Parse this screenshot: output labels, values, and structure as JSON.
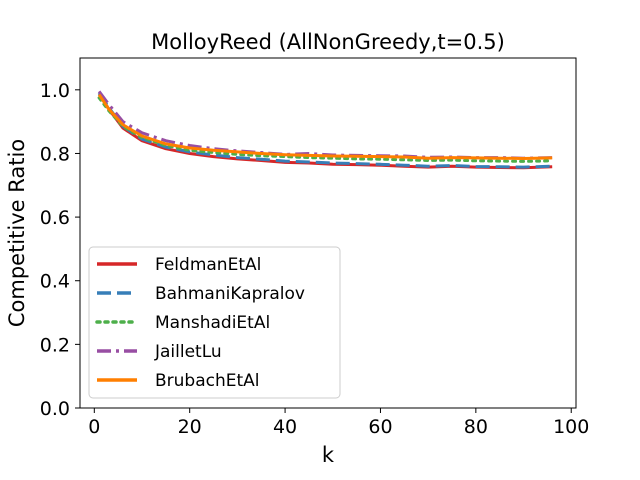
{
  "chart_data": {
    "type": "line",
    "title": "MolloyReed (AllNonGreedy,t=0.5)",
    "xlabel": "k",
    "ylabel": "Competitive Ratio",
    "xlim": [
      -3,
      101
    ],
    "ylim": [
      0.0,
      1.1
    ],
    "xticks": [
      0,
      20,
      40,
      60,
      80,
      100
    ],
    "xtick_labels": [
      "0",
      "20",
      "40",
      "60",
      "80",
      "100"
    ],
    "yticks": [
      0.0,
      0.2,
      0.4,
      0.6,
      0.8,
      1.0
    ],
    "ytick_labels": [
      "0.0",
      "0.2",
      "0.4",
      "0.6",
      "0.8",
      "1.0"
    ],
    "grid": false,
    "legend_position": "lower-left",
    "series": [
      {
        "name": "FeldmanEtAl",
        "color": "#d62728",
        "style": "solid",
        "x": [
          1,
          3,
          6,
          10,
          15,
          20,
          25,
          30,
          35,
          40,
          45,
          50,
          55,
          60,
          65,
          70,
          75,
          80,
          85,
          90,
          96
        ],
        "y": [
          0.99,
          0.94,
          0.88,
          0.84,
          0.815,
          0.8,
          0.79,
          0.783,
          0.778,
          0.772,
          0.77,
          0.766,
          0.765,
          0.763,
          0.76,
          0.757,
          0.76,
          0.757,
          0.756,
          0.755,
          0.758
        ]
      },
      {
        "name": "BahmaniKapralov",
        "color": "#377eb8",
        "style": "dashed",
        "x": [
          1,
          3,
          6,
          10,
          15,
          20,
          25,
          30,
          35,
          40,
          45,
          50,
          55,
          60,
          65,
          70,
          75,
          80,
          85,
          90,
          96
        ],
        "y": [
          0.99,
          0.945,
          0.885,
          0.845,
          0.82,
          0.805,
          0.795,
          0.787,
          0.782,
          0.776,
          0.773,
          0.77,
          0.768,
          0.766,
          0.763,
          0.76,
          0.762,
          0.759,
          0.758,
          0.757,
          0.76
        ]
      },
      {
        "name": "ManshadiEtAl",
        "color": "#4daf4a",
        "style": "dotted",
        "x": [
          1,
          3,
          6,
          10,
          15,
          20,
          25,
          30,
          35,
          40,
          45,
          50,
          55,
          60,
          65,
          70,
          75,
          80,
          85,
          90,
          96
        ],
        "y": [
          0.975,
          0.935,
          0.885,
          0.85,
          0.825,
          0.81,
          0.803,
          0.797,
          0.793,
          0.79,
          0.787,
          0.785,
          0.783,
          0.782,
          0.78,
          0.778,
          0.779,
          0.777,
          0.776,
          0.775,
          0.777
        ]
      },
      {
        "name": "JailletLu",
        "color": "#984ea3",
        "style": "dashdot",
        "x": [
          1,
          3,
          6,
          10,
          15,
          20,
          25,
          30,
          35,
          40,
          45,
          50,
          55,
          60,
          65,
          70,
          75,
          80,
          85,
          90,
          96
        ],
        "y": [
          0.995,
          0.955,
          0.9,
          0.865,
          0.84,
          0.825,
          0.815,
          0.808,
          0.803,
          0.797,
          0.8,
          0.795,
          0.794,
          0.793,
          0.792,
          0.788,
          0.789,
          0.787,
          0.787,
          0.785,
          0.787
        ]
      },
      {
        "name": "BrubachEtAl",
        "color": "#ff7f00",
        "style": "solid",
        "x": [
          1,
          3,
          6,
          10,
          15,
          20,
          25,
          30,
          35,
          40,
          45,
          50,
          55,
          60,
          65,
          70,
          75,
          80,
          85,
          90,
          96
        ],
        "y": [
          0.985,
          0.94,
          0.89,
          0.855,
          0.83,
          0.817,
          0.81,
          0.805,
          0.8,
          0.796,
          0.794,
          0.792,
          0.791,
          0.79,
          0.789,
          0.785,
          0.787,
          0.786,
          0.785,
          0.784,
          0.786
        ]
      }
    ]
  }
}
